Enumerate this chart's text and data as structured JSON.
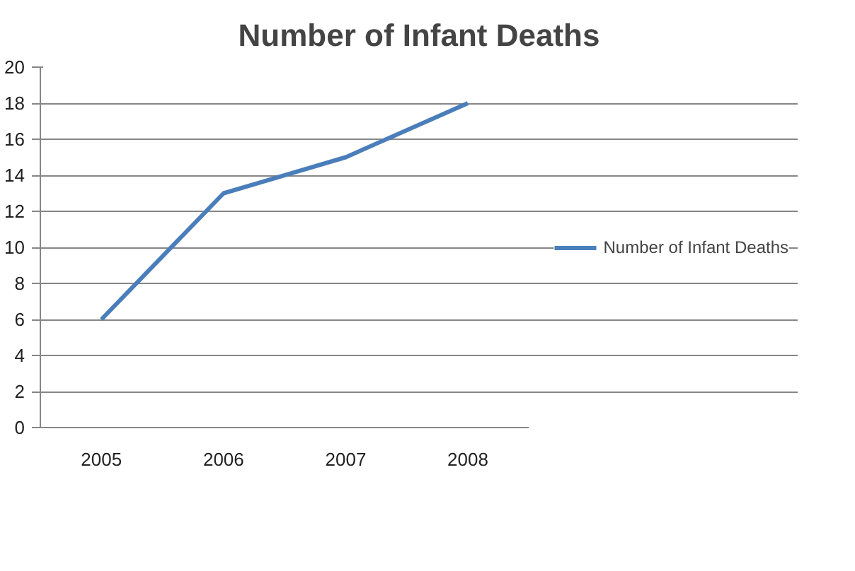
{
  "chart_data": {
    "type": "line",
    "title": "Number of Infant Deaths",
    "categories": [
      "2005",
      "2006",
      "2007",
      "2008"
    ],
    "series": [
      {
        "name": "Number of Infant Deaths",
        "color": "#4a7ebb",
        "values": [
          6,
          13,
          15,
          18
        ]
      }
    ],
    "ylim": [
      0,
      20
    ],
    "yticks": [
      0,
      2,
      4,
      6,
      8,
      10,
      12,
      14,
      16,
      18,
      20
    ],
    "grid": "y",
    "legend": "right"
  }
}
